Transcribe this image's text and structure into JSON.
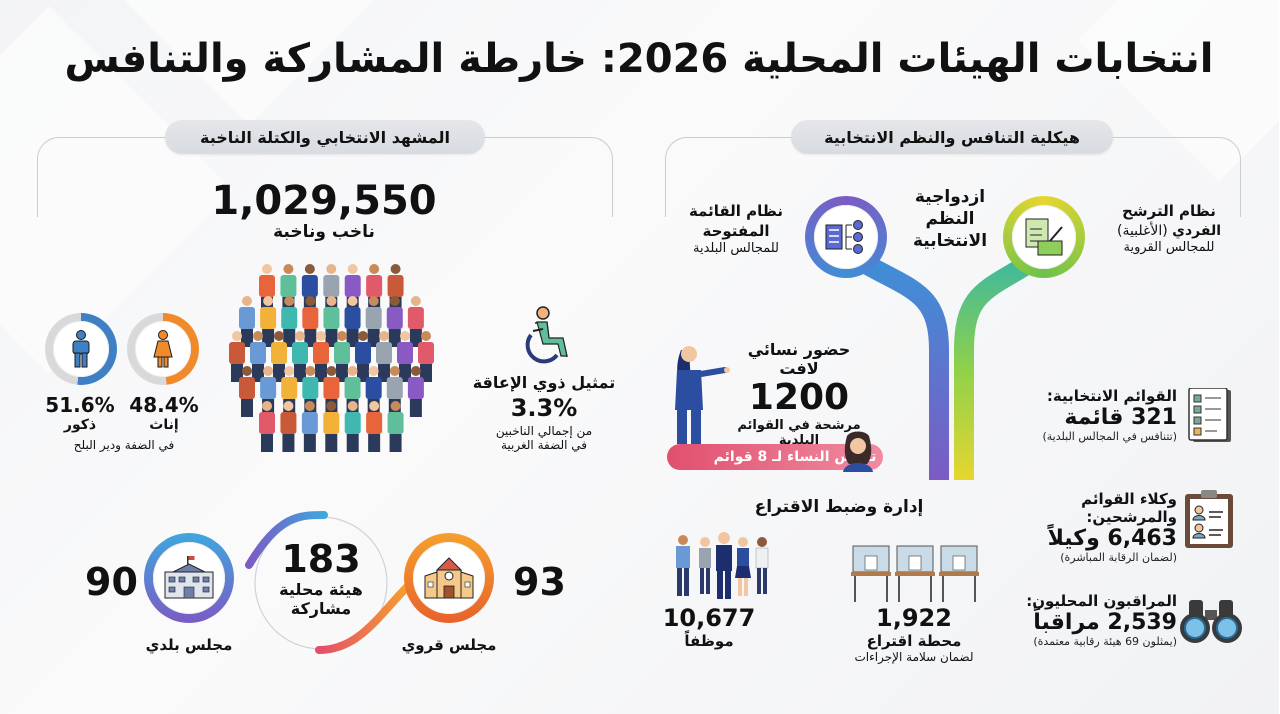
{
  "title": "انتخابات الهيئات المحلية 2026: خارطة المشاركة والتنافس",
  "left_section": {
    "header": "المشهد الانتخابي والكتلة الناخبة",
    "voters": {
      "total": "1,029,550",
      "label": "ناخب وناخبة"
    },
    "gender": {
      "male": {
        "percent": "51.6%",
        "label": "ذكور",
        "color": "#3f7fc4"
      },
      "female": {
        "percent": "48.4%",
        "label": "إناث",
        "color": "#f08a2a"
      },
      "note": "في الضفة ودير البلح"
    },
    "disability": {
      "label": "تمثيل ذوي الإعاقة",
      "percent": "3.3%",
      "note_line1": "من إجمالي الناخبين",
      "note_line2": "في الضفة الغربية"
    },
    "bodies": {
      "total": "183",
      "total_label_line1": "هيئة محلية",
      "total_label_line2": "مشاركة",
      "municipal": {
        "count": "90",
        "label": "مجلس بلدي"
      },
      "village": {
        "count": "93",
        "label": "مجلس قروي"
      }
    }
  },
  "right_section": {
    "header": "هيكلية التنافس والنظم الانتخابية",
    "dual_systems": {
      "line1": "ازدواجية",
      "line2": "النظم",
      "line3": "الانتخابية"
    },
    "open_list": {
      "line1": "نظام القائمة",
      "line2": "المفتوحة",
      "line3": "للمجالس البلدية"
    },
    "individual": {
      "line1": "نظام الترشح",
      "line2_bold": "الفردي",
      "line2_rest": "(الأغلبية)",
      "line3": "للمجالس القروية"
    },
    "women": {
      "heading": "حضور نسائي لافت",
      "count": "1200",
      "sub": "مرشحة في القوائم البلدية",
      "bar": "ترؤس النساء لـ 8 قوائم"
    },
    "lists": {
      "label": "القوائم الانتخابية:",
      "value": "321 قائمة",
      "note": "(تتنافس في المجالس البلدية)"
    },
    "agents": {
      "label": "وكلاء القوائم والمرشحين:",
      "value": "6,463 وكيلاً",
      "note": "(لضمان الرقابة المباشرة)"
    },
    "observers": {
      "label": "المراقبون المحليون:",
      "value": "2,539 مراقباً",
      "note": "(يمثلون 69 هيئة رقابية معتمدة)"
    },
    "administration": {
      "heading": "إدارة وضبط الاقتراع",
      "stations": {
        "count": "1,922",
        "label": "محطة اقتراع",
        "note": "لضمان سلامة الإجراءات"
      },
      "staff": {
        "count": "10,677",
        "label": "موظفاً"
      }
    }
  },
  "colors": {
    "blue": "#3f8fd6",
    "purple": "#7b5bc4",
    "green": "#6cc24a",
    "yellow": "#e6d630",
    "orange": "#f29a2e",
    "pink": "#e0506f"
  }
}
